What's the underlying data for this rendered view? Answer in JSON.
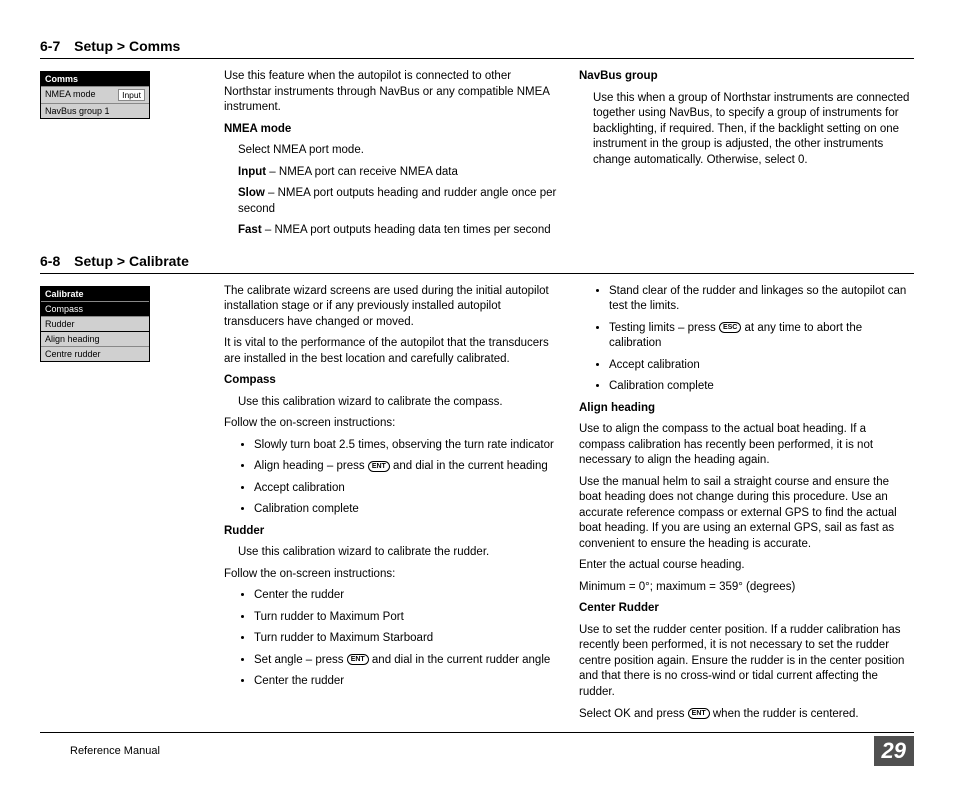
{
  "section1": {
    "num": "6-7",
    "title": "Setup > Comms",
    "menu": {
      "title": "Comms",
      "row1_label": "NMEA mode",
      "row1_value": "Input",
      "row2": "NavBus group 1"
    },
    "col1": {
      "intro": "Use this feature when the autopilot is connected to other Northstar instruments through NavBus or any compatible NMEA instrument.",
      "h1": "NMEA mode",
      "h1_line": "Select NMEA port mode.",
      "d1_label": "Input",
      "d1_text": " – NMEA port can receive NMEA data",
      "d2_label": "Slow",
      "d2_text": " – NMEA port outputs heading and rudder angle once per second",
      "d3_label": "Fast",
      "d3_text": " – NMEA port outputs heading data ten times per second"
    },
    "col2": {
      "h1": "NavBus group",
      "p1": "Use this when a group of Northstar instruments are connected together using NavBus, to specify a group of instruments for backlighting, if required. Then, if the backlight setting on one instrument in the group is adjusted, the other instruments change automatically. Otherwise, select 0."
    }
  },
  "section2": {
    "num": "6-8",
    "title": "Setup > Calibrate",
    "menu": {
      "title": "Calibrate",
      "row1": "Compass",
      "row2": "Rudder",
      "row3": "Align heading",
      "row4": "Centre rudder"
    },
    "col1": {
      "p1": "The calibrate wizard screens are used during the initial autopilot installation stage or if any previously installed autopilot transducers have changed or moved.",
      "p2": "It is vital to the performance of the autopilot that the transducers are installed in the best location and carefully calibrated.",
      "h_compass": "Compass",
      "compass_line": "Use this calibration wizard to calibrate the compass.",
      "follow1": "Follow the on-screen instructions:",
      "b1": "Slowly turn boat 2.5 times, observing the turn rate indicator",
      "b2a": "Align heading – press ",
      "b2_btn": "ENT",
      "b2b": " and dial in the current heading",
      "b3": "Accept calibration",
      "b4": "Calibration complete",
      "h_rudder": "Rudder",
      "rudder_line": "Use this calibration wizard to calibrate the rudder.",
      "follow2": "Follow the on-screen instructions:",
      "r1": "Center the rudder",
      "r2": "Turn rudder to Maximum Port",
      "r3": "Turn rudder to Maximum Starboard",
      "r4a": "Set angle – press ",
      "r4_btn": "ENT",
      "r4b": " and dial in the current rudder angle",
      "r5": "Center the rudder"
    },
    "col2": {
      "c1": "Stand clear of the rudder and linkages so the autopilot can test the limits.",
      "c2a": "Testing limits – press ",
      "c2_btn": "ESC",
      "c2b": " at any time to abort the calibration",
      "c3": "Accept calibration",
      "c4": "Calibration complete",
      "h_align": "Align heading",
      "a1": "Use to align the compass to the actual boat heading. If a compass calibration has recently been performed, it is not necessary to align the heading again.",
      "a2": "Use the manual helm to sail a straight course and ensure the boat heading does not change during this procedure. Use an accurate reference compass or external GPS to find the actual boat heading. If you are using an external GPS, sail as fast as convenient to ensure the heading is accurate.",
      "a3": "Enter the actual course heading.",
      "a4": "Minimum = 0°; maximum = 359° (degrees)",
      "h_center": "Center Rudder",
      "cr1": "Use to set the rudder center position. If a rudder calibration has recently been performed, it is not necessary to set the rudder centre position again. Ensure the rudder is in the center position and that there is no cross-wind or tidal current affecting the rudder.",
      "cr2a": "Select OK and press ",
      "cr2_btn": "ENT",
      "cr2b": " when the rudder is centered."
    }
  },
  "footer": {
    "ref": "Reference Manual",
    "page": "29"
  }
}
